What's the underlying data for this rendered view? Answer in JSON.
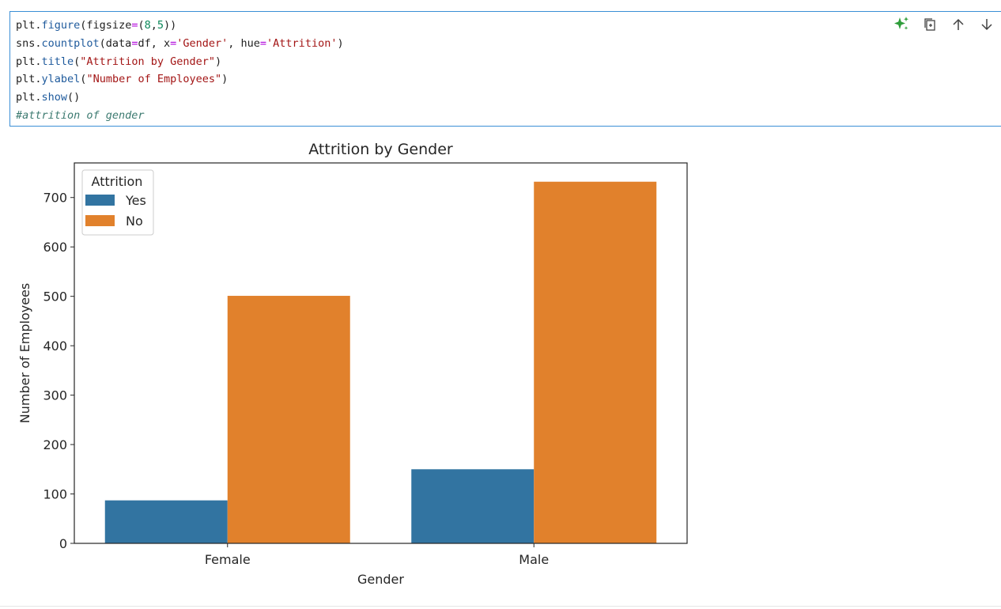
{
  "code_cell": {
    "lines": [
      [
        [
          "tok-plain",
          "plt."
        ],
        [
          "tok-fn",
          "figure"
        ],
        [
          "tok-plain",
          "(figsize"
        ],
        [
          "tok-op",
          "="
        ],
        [
          "tok-plain",
          "("
        ],
        [
          "tok-num",
          "8"
        ],
        [
          "tok-plain",
          ","
        ],
        [
          "tok-num",
          "5"
        ],
        [
          "tok-plain",
          "))"
        ]
      ],
      [
        [
          "tok-plain",
          "sns."
        ],
        [
          "tok-fn",
          "countplot"
        ],
        [
          "tok-plain",
          "(data"
        ],
        [
          "tok-op",
          "="
        ],
        [
          "tok-plain",
          "df, x"
        ],
        [
          "tok-op",
          "="
        ],
        [
          "tok-str",
          "'Gender'"
        ],
        [
          "tok-plain",
          ", hue"
        ],
        [
          "tok-op",
          "="
        ],
        [
          "tok-str",
          "'Attrition'"
        ],
        [
          "tok-plain",
          ")"
        ]
      ],
      [
        [
          "tok-plain",
          "plt."
        ],
        [
          "tok-fn",
          "title"
        ],
        [
          "tok-plain",
          "("
        ],
        [
          "tok-str",
          "\"Attrition by Gender\""
        ],
        [
          "tok-plain",
          ")"
        ]
      ],
      [
        [
          "tok-plain",
          "plt."
        ],
        [
          "tok-fn",
          "ylabel"
        ],
        [
          "tok-plain",
          "("
        ],
        [
          "tok-str",
          "\"Number of Employees\""
        ],
        [
          "tok-plain",
          ")"
        ]
      ],
      [
        [
          "tok-plain",
          "plt."
        ],
        [
          "tok-fn",
          "show"
        ],
        [
          "tok-plain",
          "()"
        ]
      ],
      [
        [
          "tok-comment",
          "#attrition of gender"
        ]
      ]
    ]
  },
  "toolbar": {
    "icons": [
      "sparkle-ai-icon",
      "copy-icon",
      "arrow-up-icon",
      "arrow-down-icon"
    ],
    "colors": {
      "sparkle": "#2e9d3a",
      "icon": "#424242"
    }
  },
  "chart_data": {
    "type": "bar",
    "title": "Attrition by Gender",
    "xlabel": "Gender",
    "ylabel": "Number of Employees",
    "categories": [
      "Female",
      "Male"
    ],
    "series": [
      {
        "name": "Yes",
        "values": [
          87,
          150
        ],
        "color": "#3274a1"
      },
      {
        "name": "No",
        "values": [
          501,
          732
        ],
        "color": "#e1812c"
      }
    ],
    "ylim": [
      0,
      770
    ],
    "yticks": [
      0,
      100,
      200,
      300,
      400,
      500,
      600,
      700
    ],
    "legend": {
      "title": "Attrition",
      "placement": "top-left"
    },
    "grid": false
  }
}
